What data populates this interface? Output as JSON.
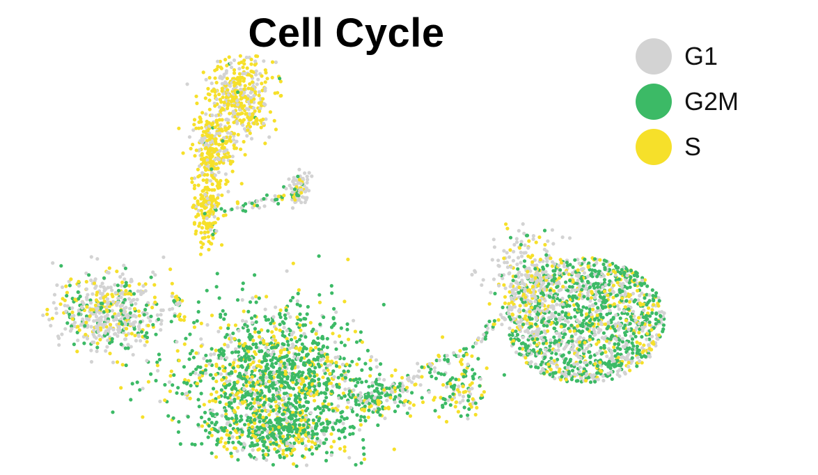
{
  "chart_data": {
    "type": "scatter",
    "title": "Cell Cycle",
    "xlabel": "",
    "ylabel": "",
    "grid": false,
    "axes_visible": false,
    "legend_position": "top-right",
    "series": [
      {
        "name": "G1",
        "color": "#d3d3d3"
      },
      {
        "name": "G2M",
        "color": "#3cba66"
      },
      {
        "name": "S",
        "color": "#f6e02a"
      }
    ]
  }
}
